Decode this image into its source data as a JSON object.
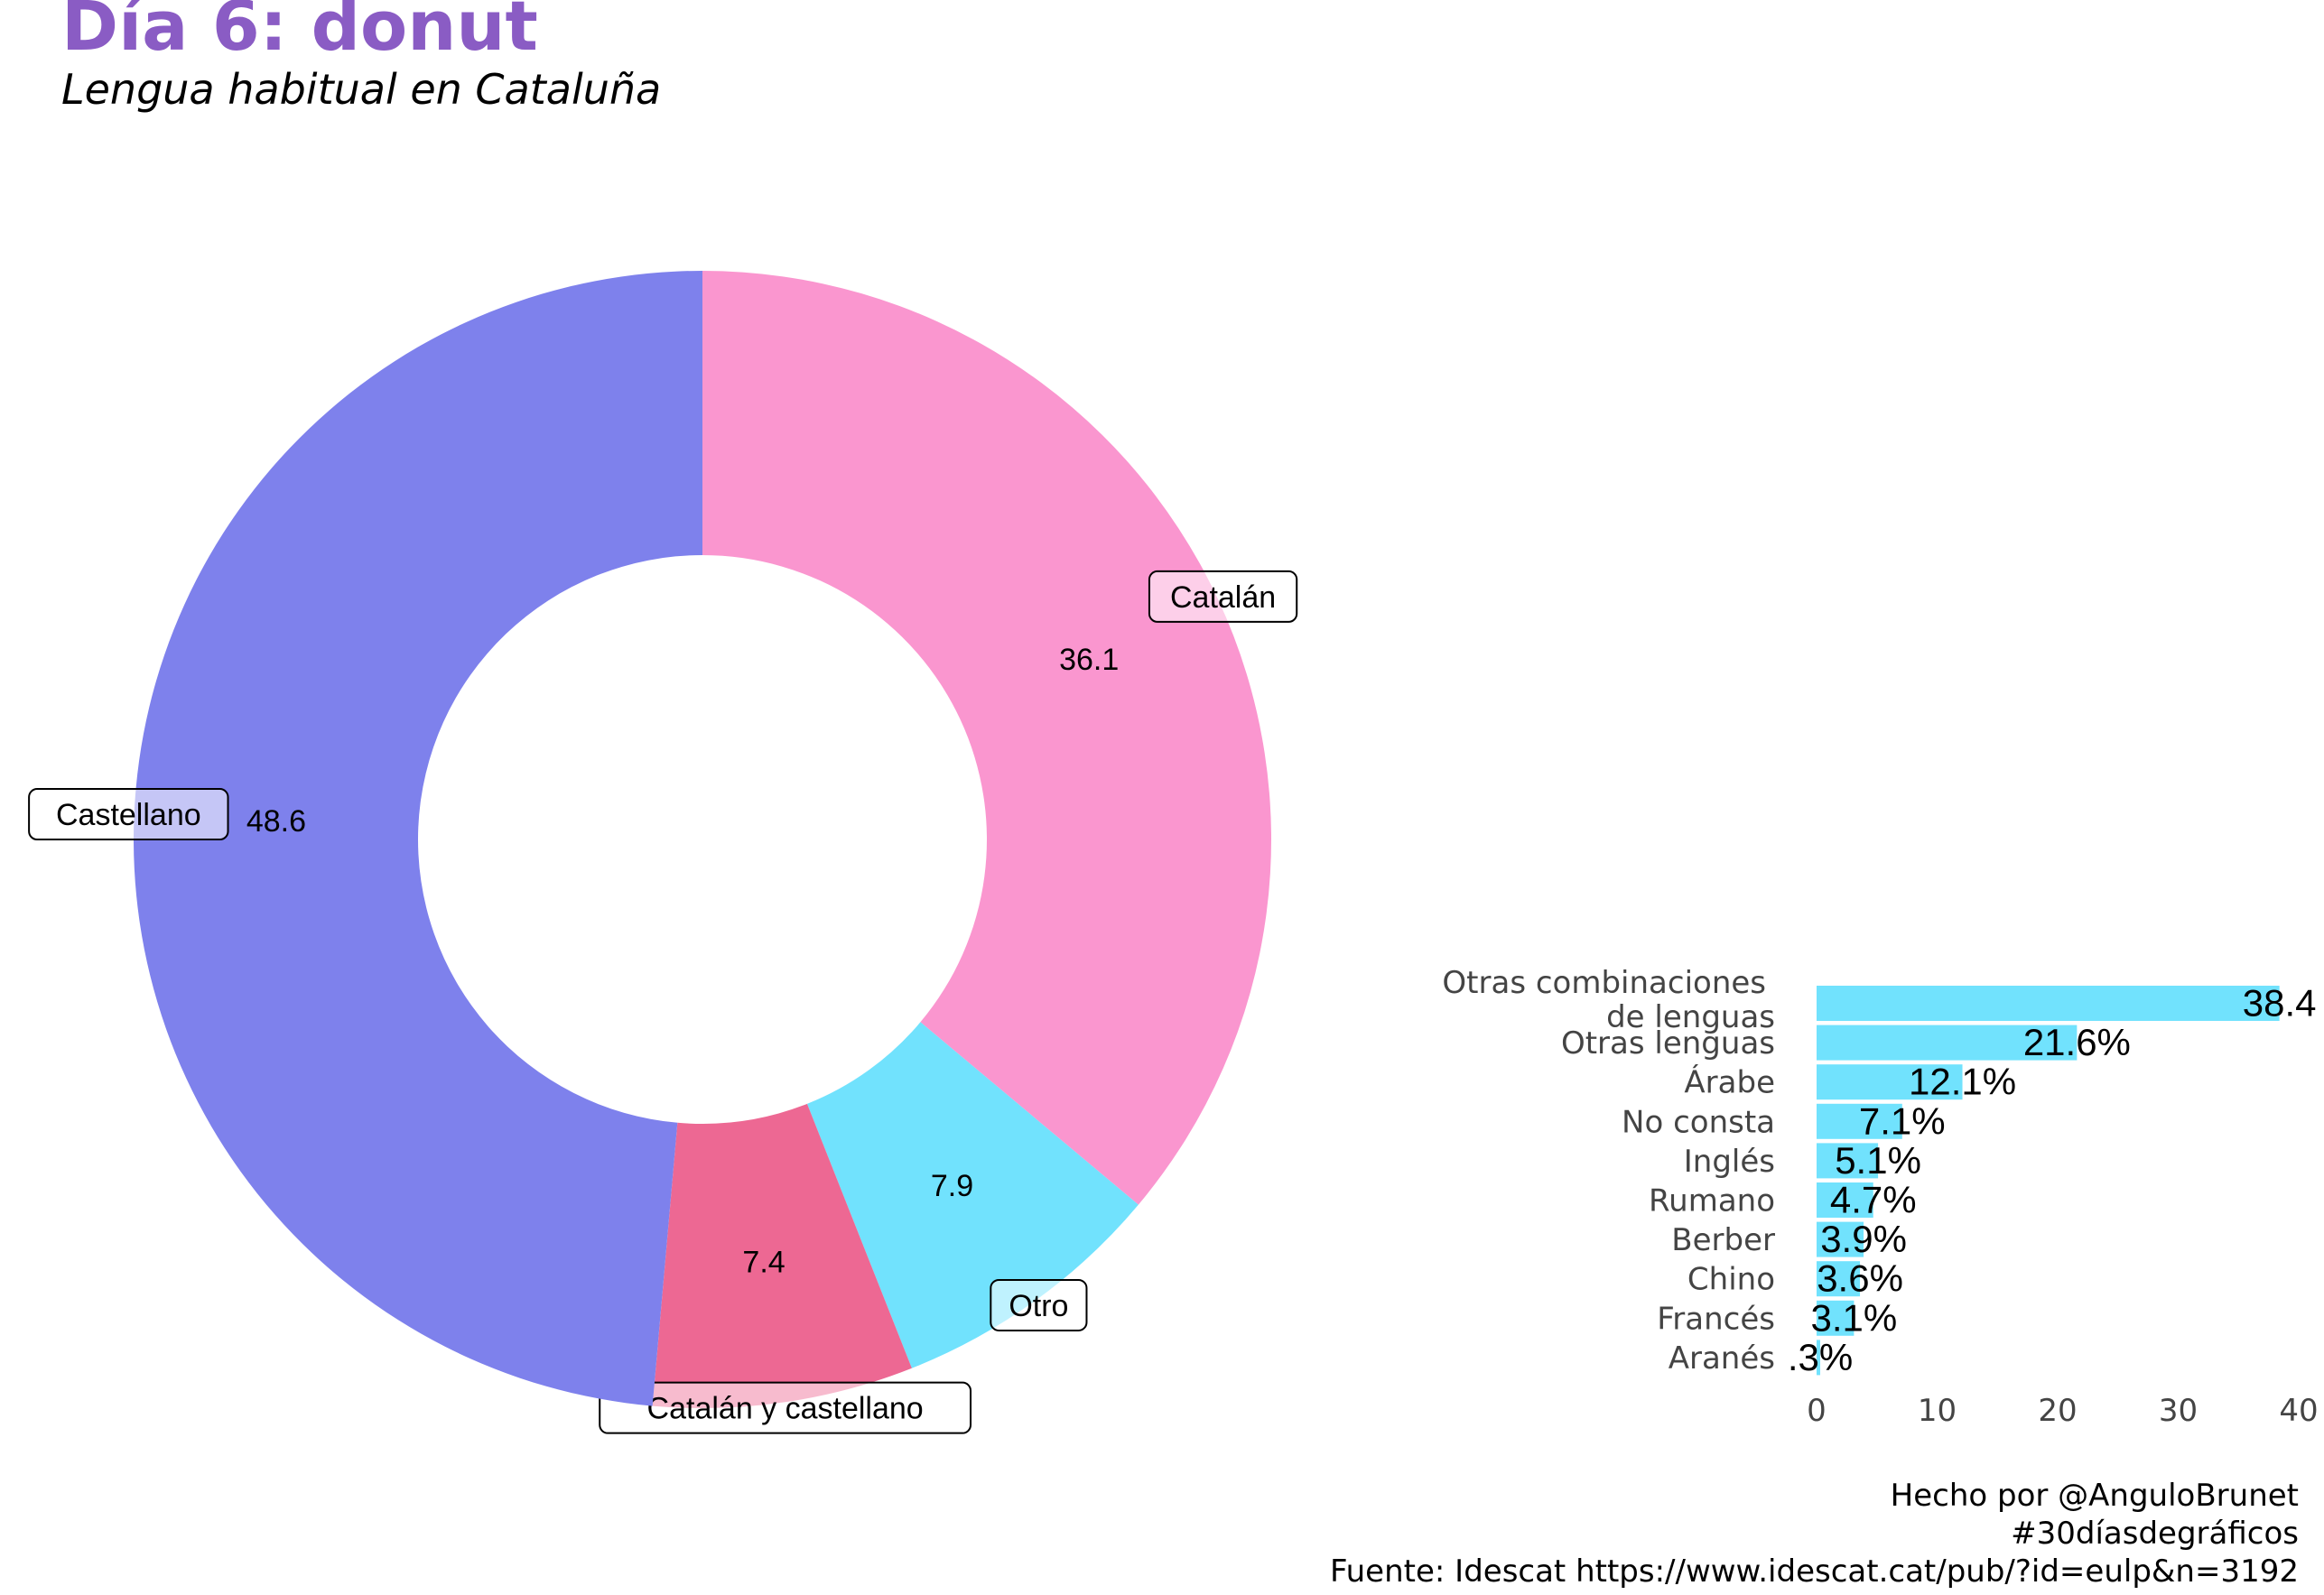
{
  "header": {
    "title": "Día 6: donut",
    "subtitle": "Lengua habitual en Cataluña"
  },
  "chart_data": [
    {
      "type": "pie",
      "variant": "donut",
      "slices": [
        {
          "label": "Catalán",
          "value": 36.1,
          "color": "#fa96cf"
        },
        {
          "label": "Otro",
          "value": 7.9,
          "color": "#71e2fd"
        },
        {
          "label": "Catalán y castellano",
          "value": 7.4,
          "color": "#ed6893"
        },
        {
          "label": "Castellano",
          "value": 48.6,
          "color": "#7e81ec"
        }
      ]
    },
    {
      "type": "bar",
      "orientation": "horizontal",
      "color": "#71e2fd",
      "categories": [
        "Otras combinaciones\nde lenguas",
        "Otras lenguas",
        "Árabe",
        "No consta",
        "Inglés",
        "Rumano",
        "Berber",
        "Chino",
        "Francés",
        "Aranés"
      ],
      "values": [
        38.4,
        21.6,
        12.1,
        7.1,
        5.1,
        4.7,
        3.9,
        3.6,
        3.1,
        0.3
      ],
      "data_labels": [
        "38.4",
        "21.6%",
        "12.1%",
        "7.1%",
        "5.1%",
        "4.7%",
        "3.9%",
        "3.6%",
        "3.1%",
        ".3%"
      ],
      "xlim": [
        0,
        40
      ],
      "xticks": [
        "0",
        "10",
        "20",
        "30",
        "40"
      ],
      "grid": false
    }
  ],
  "footer": {
    "lines": [
      "Hecho por @AnguloBrunet",
      "#30díasdegráficos",
      "Fuente: Idescat https://www.idescat.cat/pub/?id=eulp&n=3192"
    ]
  }
}
